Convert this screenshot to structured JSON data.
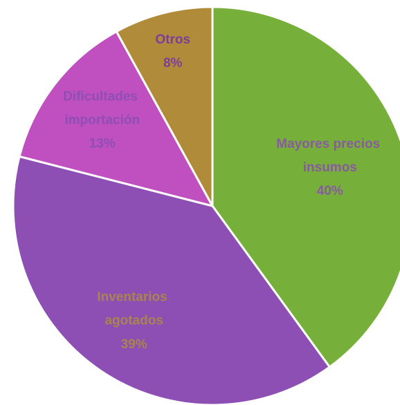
{
  "chart_data": {
    "type": "pie",
    "categories": [
      "Mayores precios insumos",
      "Inventarios agotados",
      "Dificultades importación",
      "Otros"
    ],
    "values": [
      40,
      39,
      13,
      8
    ],
    "value_labels": [
      "40%",
      "39%",
      "13%",
      "8%"
    ],
    "colors": [
      "#76b03b",
      "#8e4fb5",
      "#c04fbf",
      "#b08c3a"
    ]
  }
}
